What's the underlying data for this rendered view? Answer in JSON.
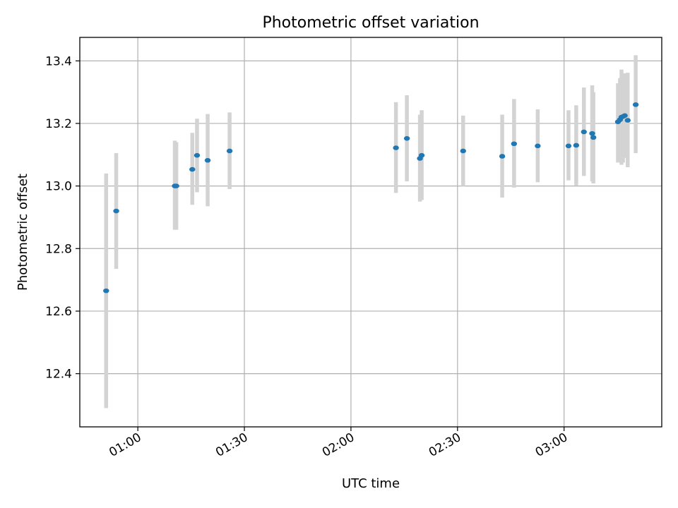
{
  "chart_data": {
    "type": "scatter",
    "title": "Photometric offset variation",
    "xlabel": "UTC time",
    "ylabel": "Photometric offset",
    "x_ticks": [
      "01:00",
      "01:30",
      "02:00",
      "02:30",
      "03:00"
    ],
    "y_ticks": [
      "12.4",
      "12.6",
      "12.8",
      "13.0",
      "13.2",
      "13.4"
    ],
    "xlim": [
      "00:43:40",
      "03:27:30"
    ],
    "ylim": [
      12.23,
      13.475
    ],
    "grid": true,
    "point_color": "#1f77b4",
    "errorbar_color": "#d3d3d3",
    "points": [
      {
        "t": "00:51:05",
        "y": 12.665,
        "lo": 12.29,
        "hi": 13.04
      },
      {
        "t": "00:53:55",
        "y": 12.92,
        "lo": 12.735,
        "hi": 13.105
      },
      {
        "t": "01:10:25",
        "y": 13.0,
        "lo": 12.86,
        "hi": 13.145
      },
      {
        "t": "01:10:50",
        "y": 13.0,
        "lo": 12.86,
        "hi": 13.14
      },
      {
        "t": "01:15:20",
        "y": 13.053,
        "lo": 12.94,
        "hi": 13.17
      },
      {
        "t": "01:16:40",
        "y": 13.098,
        "lo": 12.98,
        "hi": 13.215
      },
      {
        "t": "01:19:40",
        "y": 13.082,
        "lo": 12.935,
        "hi": 13.23
      },
      {
        "t": "01:25:50",
        "y": 13.112,
        "lo": 12.99,
        "hi": 13.235
      },
      {
        "t": "02:12:40",
        "y": 13.122,
        "lo": 12.978,
        "hi": 13.268
      },
      {
        "t": "02:15:45",
        "y": 13.152,
        "lo": 13.015,
        "hi": 13.29
      },
      {
        "t": "02:19:25",
        "y": 13.088,
        "lo": 12.95,
        "hi": 13.228
      },
      {
        "t": "02:19:55",
        "y": 13.098,
        "lo": 12.955,
        "hi": 13.242
      },
      {
        "t": "02:31:35",
        "y": 13.112,
        "lo": 13.0,
        "hi": 13.225
      },
      {
        "t": "02:42:35",
        "y": 13.095,
        "lo": 12.963,
        "hi": 13.228
      },
      {
        "t": "02:45:55",
        "y": 13.135,
        "lo": 12.995,
        "hi": 13.278
      },
      {
        "t": "02:52:35",
        "y": 13.128,
        "lo": 13.012,
        "hi": 13.245
      },
      {
        "t": "03:01:15",
        "y": 13.128,
        "lo": 13.018,
        "hi": 13.242
      },
      {
        "t": "03:03:25",
        "y": 13.13,
        "lo": 13.002,
        "hi": 13.258
      },
      {
        "t": "03:05:35",
        "y": 13.173,
        "lo": 13.032,
        "hi": 13.315
      },
      {
        "t": "03:07:55",
        "y": 13.168,
        "lo": 13.015,
        "hi": 13.322
      },
      {
        "t": "03:08:15",
        "y": 13.155,
        "lo": 13.008,
        "hi": 13.3
      },
      {
        "t": "03:15:10",
        "y": 13.205,
        "lo": 13.075,
        "hi": 13.328
      },
      {
        "t": "03:15:45",
        "y": 13.212,
        "lo": 13.08,
        "hi": 13.345
      },
      {
        "t": "03:16:10",
        "y": 13.22,
        "lo": 13.068,
        "hi": 13.372
      },
      {
        "t": "03:16:35",
        "y": 13.222,
        "lo": 13.075,
        "hi": 13.36
      },
      {
        "t": "03:17:05",
        "y": 13.225,
        "lo": 13.09,
        "hi": 13.36
      },
      {
        "t": "03:17:55",
        "y": 13.21,
        "lo": 13.06,
        "hi": 13.362
      },
      {
        "t": "03:20:10",
        "y": 13.26,
        "lo": 13.105,
        "hi": 13.418
      }
    ]
  }
}
